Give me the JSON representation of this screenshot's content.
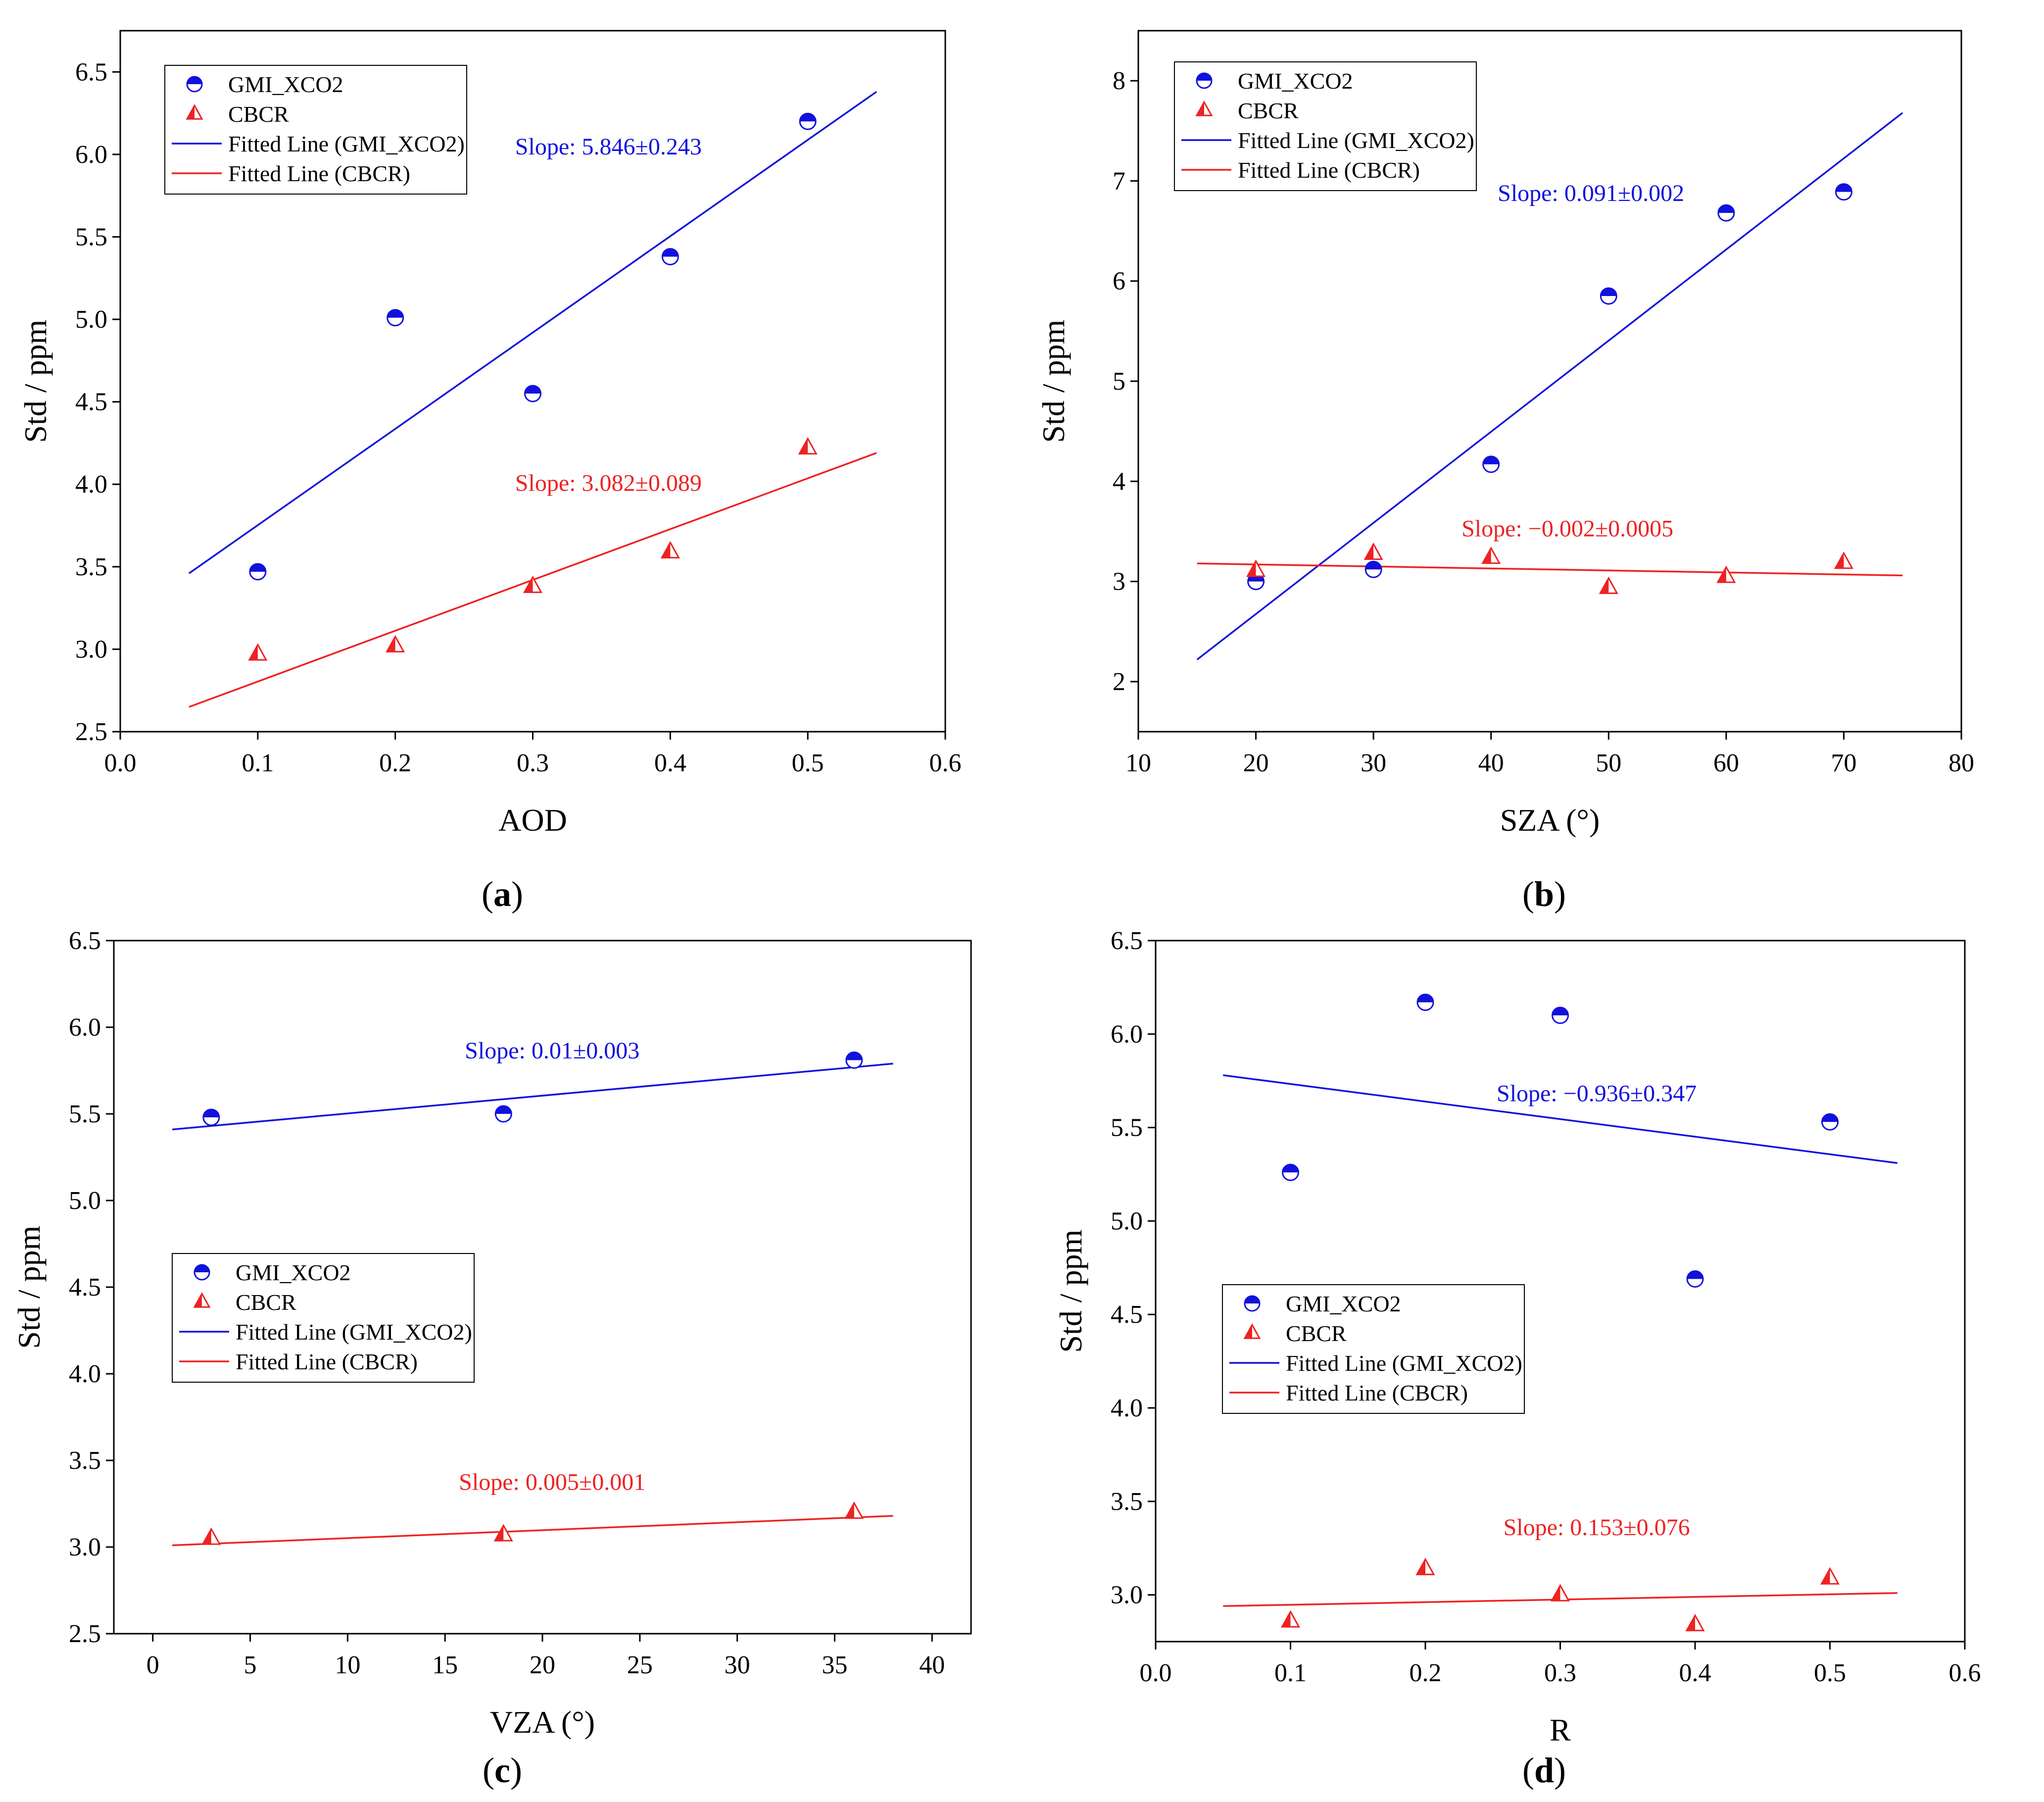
{
  "colors": {
    "gmi": "#1111dd",
    "cbcr": "#ee2222",
    "axis": "#000000"
  },
  "legend_labels": {
    "gmi": "GMI_XCO2",
    "cbcr": "CBCR",
    "fit_gmi": "Fitted Line (GMI_XCO2)",
    "fit_cbcr": "Fitted Line (CBCR)"
  },
  "chart_data": [
    {
      "panel": "a",
      "caption_letter": "a",
      "type": "scatter",
      "xlabel": "AOD",
      "ylabel": "Std / ppm",
      "xlim": [
        0.0,
        0.6
      ],
      "ylim": [
        2.5,
        6.75
      ],
      "xticks": [
        0.0,
        0.1,
        0.2,
        0.3,
        0.4,
        0.5,
        0.6
      ],
      "xtick_labels": [
        "0.0",
        "0.1",
        "0.2",
        "0.3",
        "0.4",
        "0.5",
        "0.6"
      ],
      "yticks": [
        2.5,
        3.0,
        3.5,
        4.0,
        4.5,
        5.0,
        5.5,
        6.0,
        6.5
      ],
      "ytick_labels": [
        "2.5",
        "3.0",
        "3.5",
        "4.0",
        "4.5",
        "5.0",
        "5.5",
        "6.0",
        "6.5"
      ],
      "legend_position": "top-left",
      "series": [
        {
          "name": "GMI_XCO2",
          "marker": "circle",
          "x": [
            0.1,
            0.2,
            0.3,
            0.4,
            0.5
          ],
          "y": [
            3.47,
            5.01,
            4.55,
            5.38,
            6.2
          ]
        },
        {
          "name": "CBCR",
          "marker": "triangle",
          "x": [
            0.1,
            0.2,
            0.3,
            0.4,
            0.5
          ],
          "y": [
            2.97,
            3.02,
            3.38,
            3.59,
            4.22
          ]
        }
      ],
      "fits": [
        {
          "name": "Fitted Line (GMI_XCO2)",
          "x": [
            0.05,
            0.55
          ],
          "y": [
            3.46,
            6.38
          ],
          "slope_label": "Slope: 5.846±0.243",
          "label_pos": [
            0.355,
            6.0
          ]
        },
        {
          "name": "Fitted Line (CBCR)",
          "x": [
            0.05,
            0.55
          ],
          "y": [
            2.65,
            4.19
          ],
          "slope_label": "Slope: 3.082±0.089",
          "label_pos": [
            0.355,
            3.96
          ]
        }
      ]
    },
    {
      "panel": "b",
      "caption_letter": "b",
      "type": "scatter",
      "xlabel": "SZA (°)",
      "ylabel": "Std / ppm",
      "xlim": [
        10,
        80
      ],
      "ylim": [
        1.5,
        8.5
      ],
      "xticks": [
        10,
        20,
        30,
        40,
        50,
        60,
        70,
        80
      ],
      "xtick_labels": [
        "10",
        "20",
        "30",
        "40",
        "50",
        "60",
        "70",
        "80"
      ],
      "yticks": [
        2,
        3,
        4,
        5,
        6,
        7,
        8
      ],
      "ytick_labels": [
        "2",
        "3",
        "4",
        "5",
        "6",
        "7",
        "8"
      ],
      "legend_position": "top-left",
      "series": [
        {
          "name": "GMI_XCO2",
          "marker": "circle",
          "x": [
            20,
            30,
            40,
            50,
            60,
            70
          ],
          "y": [
            3.0,
            3.12,
            4.17,
            5.85,
            6.68,
            6.89
          ]
        },
        {
          "name": "CBCR",
          "marker": "triangle",
          "x": [
            20,
            30,
            40,
            50,
            60,
            70
          ],
          "y": [
            3.11,
            3.28,
            3.24,
            2.94,
            3.05,
            3.19
          ]
        }
      ],
      "fits": [
        {
          "name": "Fitted Line (GMI_XCO2)",
          "x": [
            15,
            75
          ],
          "y": [
            2.22,
            7.68
          ],
          "slope_label": "Slope: 0.091±0.002",
          "label_pos": [
            48.5,
            6.8
          ]
        },
        {
          "name": "Fitted Line (CBCR)",
          "x": [
            15,
            75
          ],
          "y": [
            3.18,
            3.06
          ],
          "slope_label": "Slope: −0.002±0.0005",
          "label_pos": [
            46.5,
            3.45
          ]
        }
      ]
    },
    {
      "panel": "c",
      "caption_letter": "c",
      "type": "scatter",
      "xlabel": "VZA (°)",
      "ylabel": "Std / ppm",
      "xlim": [
        -2,
        42
      ],
      "ylim": [
        2.5,
        6.5
      ],
      "xticks": [
        0,
        5,
        10,
        15,
        20,
        25,
        30,
        35,
        40
      ],
      "xtick_labels": [
        "0",
        "5",
        "10",
        "15",
        "20",
        "25",
        "30",
        "35",
        "40"
      ],
      "yticks": [
        2.5,
        3.0,
        3.5,
        4.0,
        4.5,
        5.0,
        5.5,
        6.0,
        6.5
      ],
      "ytick_labels": [
        "2.5",
        "3.0",
        "3.5",
        "4.0",
        "4.5",
        "5.0",
        "5.5",
        "6.0",
        "6.5"
      ],
      "legend_position": "center-left",
      "series": [
        {
          "name": "GMI_XCO2",
          "marker": "circle",
          "x": [
            3,
            18,
            36
          ],
          "y": [
            5.48,
            5.5,
            5.81
          ]
        },
        {
          "name": "CBCR",
          "marker": "triangle",
          "x": [
            3,
            18,
            36
          ],
          "y": [
            3.05,
            3.07,
            3.2
          ]
        }
      ],
      "fits": [
        {
          "name": "Fitted Line (GMI_XCO2)",
          "x": [
            1,
            38
          ],
          "y": [
            5.41,
            5.79
          ],
          "slope_label": "Slope: 0.01±0.003",
          "label_pos": [
            20.5,
            5.82
          ]
        },
        {
          "name": "Fitted Line (CBCR)",
          "x": [
            1,
            38
          ],
          "y": [
            3.01,
            3.18
          ],
          "slope_label": "Slope: 0.005±0.001",
          "label_pos": [
            20.5,
            3.33
          ]
        }
      ]
    },
    {
      "panel": "d",
      "caption_letter": "d",
      "type": "scatter",
      "xlabel": "R",
      "ylabel": "Std / ppm",
      "xlim": [
        0.0,
        0.6
      ],
      "ylim": [
        2.75,
        6.5
      ],
      "xticks": [
        0.0,
        0.1,
        0.2,
        0.3,
        0.4,
        0.5,
        0.6
      ],
      "xtick_labels": [
        "0.0",
        "0.1",
        "0.2",
        "0.3",
        "0.4",
        "0.5",
        "0.6"
      ],
      "yticks": [
        3.0,
        3.5,
        4.0,
        4.5,
        5.0,
        5.5,
        6.0,
        6.5
      ],
      "ytick_labels": [
        "3.0",
        "3.5",
        "4.0",
        "4.5",
        "5.0",
        "5.5",
        "6.0",
        "6.5"
      ],
      "legend_position": "center-left",
      "series": [
        {
          "name": "GMI_XCO2",
          "marker": "circle",
          "x": [
            0.1,
            0.2,
            0.3,
            0.4,
            0.5
          ],
          "y": [
            5.26,
            6.17,
            6.1,
            4.69,
            5.53
          ]
        },
        {
          "name": "CBCR",
          "marker": "triangle",
          "x": [
            0.1,
            0.2,
            0.3,
            0.4,
            0.5
          ],
          "y": [
            2.86,
            3.14,
            3.0,
            2.84,
            3.09
          ]
        }
      ],
      "fits": [
        {
          "name": "Fitted Line (GMI_XCO2)",
          "x": [
            0.05,
            0.55
          ],
          "y": [
            5.78,
            5.31
          ],
          "slope_label": "Slope: −0.936±0.347",
          "label_pos": [
            0.327,
            5.64
          ]
        },
        {
          "name": "Fitted Line (CBCR)",
          "x": [
            0.05,
            0.55
          ],
          "y": [
            2.94,
            3.01
          ],
          "slope_label": "Slope: 0.153±0.076",
          "label_pos": [
            0.327,
            3.32
          ]
        }
      ]
    }
  ]
}
